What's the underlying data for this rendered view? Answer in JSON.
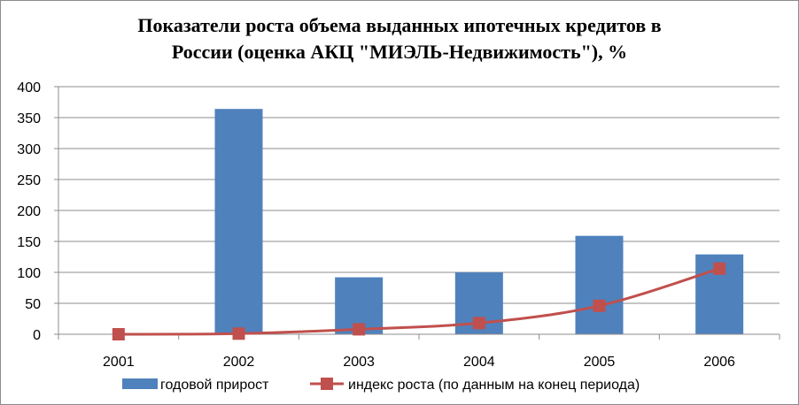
{
  "chart_data": {
    "type": "bar",
    "title_line1": "Показатели роста объема выданных ипотечных кредитов в",
    "title_line2": "России (оценка АКЦ \"МИЭЛЬ-Недвижимость\"), %",
    "categories": [
      "2001",
      "2002",
      "2003",
      "2004",
      "2005",
      "2006"
    ],
    "ylim": [
      0,
      400
    ],
    "yticks": [
      0,
      50,
      100,
      150,
      200,
      250,
      300,
      350,
      400
    ],
    "grid": true,
    "legend_position": "bottom",
    "series": [
      {
        "name": "годовой прирост",
        "type": "bar",
        "color": "#4f81bd",
        "values": [
          null,
          364,
          92,
          100,
          159,
          129
        ]
      },
      {
        "name": "индекс роста (по данным на конец периода)",
        "type": "line",
        "marker": "square",
        "color": "#c0504d",
        "values": [
          0,
          1,
          8,
          18,
          46,
          106
        ]
      }
    ]
  }
}
